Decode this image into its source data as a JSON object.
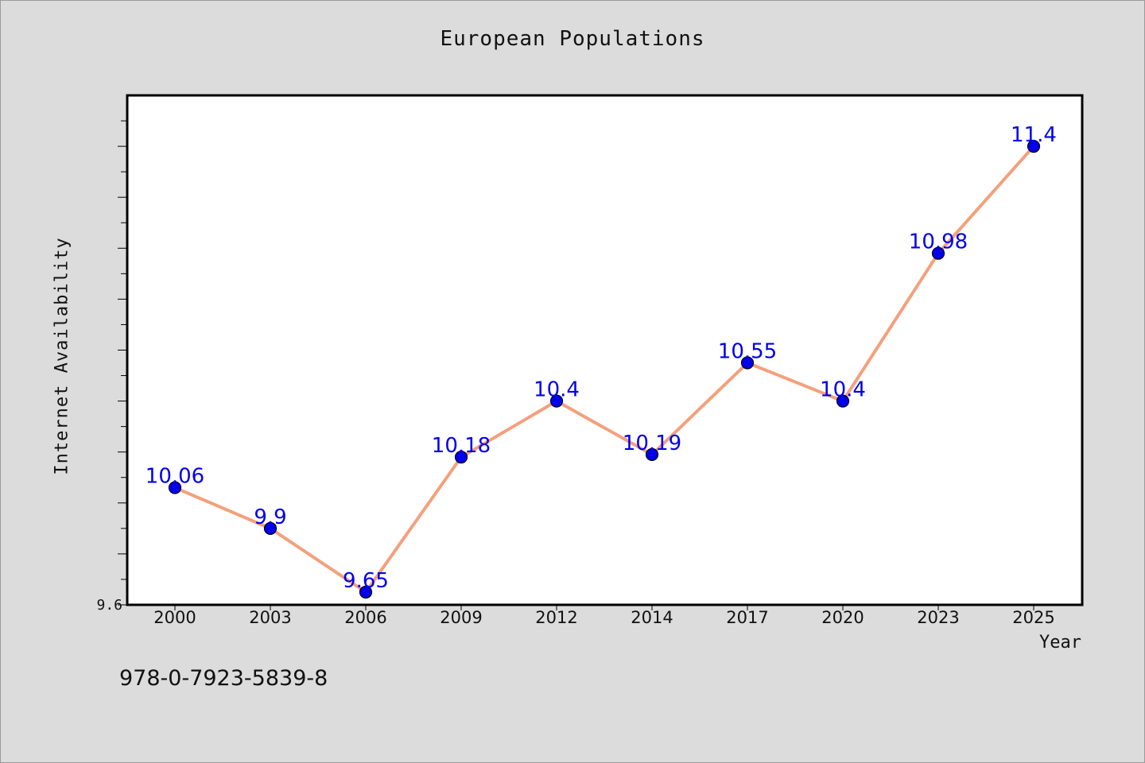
{
  "chart_data": {
    "type": "line",
    "title": "European Populations",
    "xlabel": "Year",
    "ylabel": "Internet Availability",
    "categories": [
      "2000",
      "2003",
      "2006",
      "2009",
      "2012",
      "2014",
      "2017",
      "2020",
      "2023",
      "2025"
    ],
    "series": [
      {
        "values": [
          10.06,
          9.9,
          9.65,
          10.18,
          10.4,
          10.19,
          10.55,
          10.4,
          10.98,
          11.4
        ]
      }
    ],
    "data_labels": [
      "10.06",
      "9.9",
      "9.65",
      "10.18",
      "10.4",
      "10.19",
      "10.55",
      "10.4",
      "10.98",
      "11.4"
    ],
    "ylim": [
      9.6,
      11.6
    ],
    "y_tick_labels": [
      "9.6"
    ],
    "grid": false,
    "legend": "none",
    "colors": {
      "line": "#f4a07c",
      "marker": "#0000ee",
      "label": "#0000ee"
    }
  },
  "footer": {
    "code": "978-0-7923-5839-8"
  }
}
